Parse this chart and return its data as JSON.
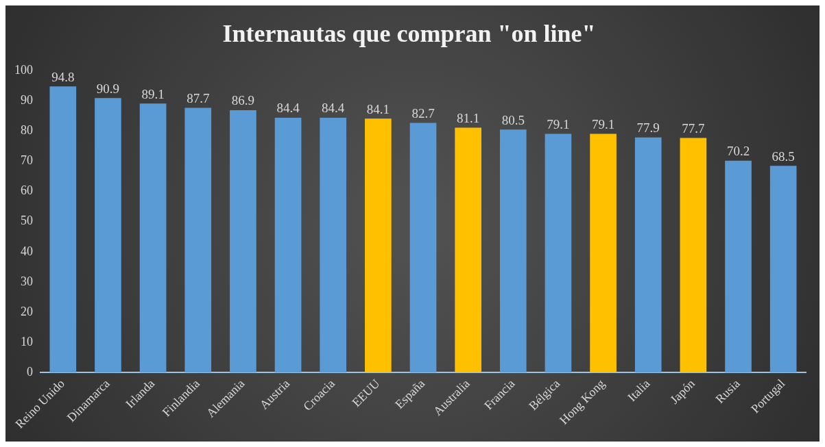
{
  "chart_data": {
    "type": "bar",
    "title": "Internautas que compran \"on line\"",
    "categories": [
      "Reino Unido",
      "Dinamarca",
      "Irlanda",
      "Finlandia",
      "Alemania",
      "Austria",
      "Croacia",
      "EEUU",
      "España",
      "Australia",
      "Francia",
      "Bélgica",
      "Hong Kong",
      "Italia",
      "Japón",
      "Rusia",
      "Portugal"
    ],
    "values": [
      94.8,
      90.9,
      89.1,
      87.7,
      86.9,
      84.4,
      84.4,
      84.1,
      82.7,
      81.1,
      80.5,
      79.1,
      79.1,
      77.9,
      77.7,
      70.2,
      68.5
    ],
    "colors": [
      "#5b9bd5",
      "#5b9bd5",
      "#5b9bd5",
      "#5b9bd5",
      "#5b9bd5",
      "#5b9bd5",
      "#5b9bd5",
      "#ffc000",
      "#5b9bd5",
      "#ffc000",
      "#5b9bd5",
      "#5b9bd5",
      "#ffc000",
      "#5b9bd5",
      "#ffc000",
      "#5b9bd5",
      "#5b9bd5"
    ],
    "ylim": [
      0,
      100
    ],
    "yticks": [
      0,
      10,
      20,
      30,
      40,
      50,
      60,
      70,
      80,
      90,
      100
    ],
    "data_labels": true,
    "grid": false,
    "legend": false
  }
}
